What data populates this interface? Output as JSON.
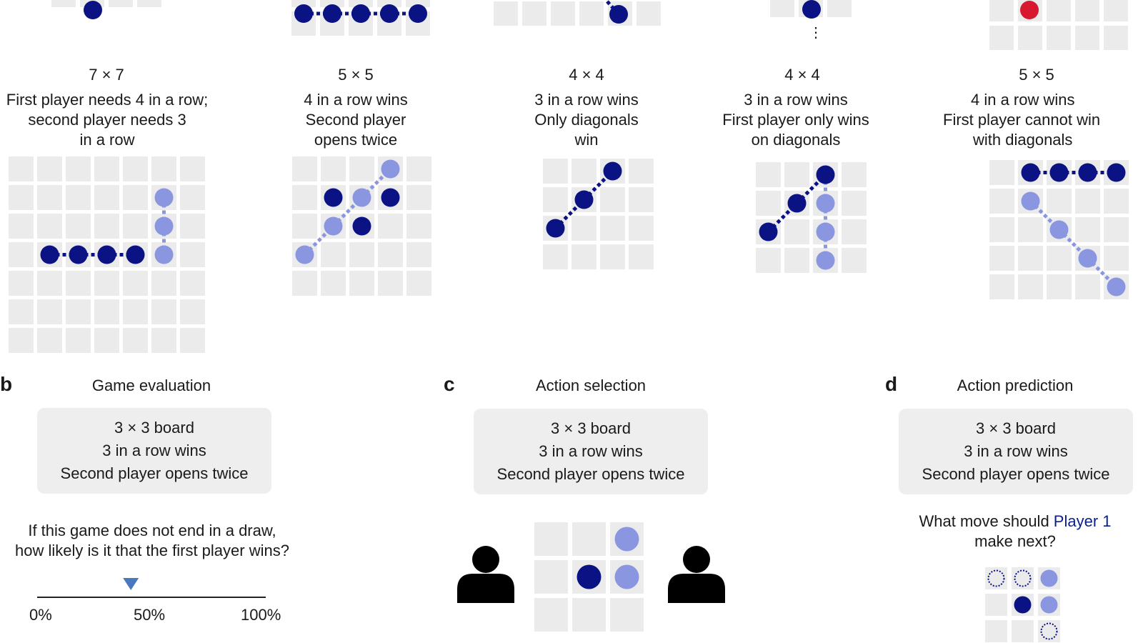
{
  "colors": {
    "cell": "#ebebeb",
    "player1": "#0b1283",
    "player2": "#8b96e0",
    "red": "#d8182f",
    "arrow": "#4a78c0",
    "person": "#000000"
  },
  "panel_a": {
    "games": [
      {
        "size": "7 × 7",
        "rule_lines": [
          "First player needs 4 in a row;",
          "second player needs 3",
          "in a row"
        ]
      },
      {
        "size": "5 × 5",
        "rule_lines": [
          "4 in a row wins",
          "Second player",
          "opens twice"
        ]
      },
      {
        "size": "4 × 4",
        "rule_lines": [
          "3 in a row wins",
          "Only diagonals",
          "win"
        ]
      },
      {
        "size": "4 × 4",
        "rule_lines": [
          "3 in a row wins",
          "First player only wins",
          "on diagonals"
        ]
      },
      {
        "size": "5 × 5",
        "rule_lines": [
          "4 in a row wins",
          "First player cannot win",
          "with diagonals"
        ]
      }
    ],
    "ellipsis": "⋮"
  },
  "panel_b": {
    "letter": "b",
    "title": "Game evaluation",
    "rule_lines": [
      "3 × 3 board",
      "3 in a row wins",
      "Second player opens twice"
    ],
    "question_lines": [
      "If this game does not end in a draw,",
      "how likely is it that the first player wins?"
    ],
    "scale_ticks": [
      "0%",
      "50%",
      "100%"
    ],
    "marker_percent": 41
  },
  "panel_c": {
    "letter": "c",
    "title": "Action selection",
    "rule_lines": [
      "3 × 3 board",
      "3 in a row wins",
      "Second player opens twice"
    ],
    "person_icons": [
      "person-icon",
      "person-icon"
    ]
  },
  "panel_d": {
    "letter": "d",
    "title": "Action prediction",
    "rule_lines": [
      "3 × 3 board",
      "3 in a row wins",
      "Second player opens twice"
    ],
    "question_prefix": "What move should ",
    "question_player": "Player 1",
    "question_line2": "make next?"
  }
}
